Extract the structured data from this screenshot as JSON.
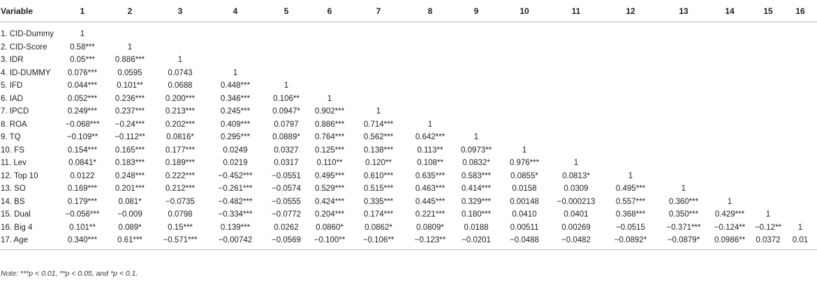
{
  "table": {
    "variable_header": "Variable",
    "columns": [
      "1",
      "2",
      "3",
      "4",
      "5",
      "6",
      "7",
      "8",
      "9",
      "10",
      "11",
      "12",
      "13",
      "14",
      "15",
      "16"
    ],
    "rows": [
      {
        "label": "1. CID-Dummy",
        "cells": [
          "1",
          "",
          "",
          "",
          "",
          "",
          "",
          "",
          "",
          "",
          "",
          "",
          "",
          "",
          "",
          ""
        ]
      },
      {
        "label": "2. CID-Score",
        "cells": [
          "0.58***",
          "1",
          "",
          "",
          "",
          "",
          "",
          "",
          "",
          "",
          "",
          "",
          "",
          "",
          "",
          ""
        ]
      },
      {
        "label": "3. IDR",
        "cells": [
          "0.05***",
          "0.886***",
          "1",
          "",
          "",
          "",
          "",
          "",
          "",
          "",
          "",
          "",
          "",
          "",
          "",
          ""
        ]
      },
      {
        "label": "4. ID-DUMMY",
        "cells": [
          "0.076***",
          "0.0595",
          "0.0743",
          "1",
          "",
          "",
          "",
          "",
          "",
          "",
          "",
          "",
          "",
          "",
          "",
          ""
        ]
      },
      {
        "label": "5. IFD",
        "cells": [
          "0.044***",
          "0.101**",
          "0.0688",
          "0.448***",
          "1",
          "",
          "",
          "",
          "",
          "",
          "",
          "",
          "",
          "",
          "",
          ""
        ]
      },
      {
        "label": "6. IAD",
        "cells": [
          "0.052***",
          "0.236***",
          "0.200***",
          "0.346***",
          "0.106**",
          "1",
          "",
          "",
          "",
          "",
          "",
          "",
          "",
          "",
          "",
          ""
        ]
      },
      {
        "label": "7. IPCD",
        "cells": [
          "0.249***",
          "0.237***",
          "0.213***",
          "0.245***",
          "0.0947*",
          "0.902***",
          "1",
          "",
          "",
          "",
          "",
          "",
          "",
          "",
          "",
          ""
        ]
      },
      {
        "label": "8. ROA",
        "cells": [
          "−0.068***",
          "−0.24***",
          "0.202***",
          "0.409***",
          "0.0797",
          "0.886***",
          "0.714***",
          "1",
          "",
          "",
          "",
          "",
          "",
          "",
          "",
          ""
        ]
      },
      {
        "label": "9. TQ",
        "cells": [
          "−0.109**",
          "−0.112**",
          "0.0816*",
          "0.295***",
          "0.0889*",
          "0.764***",
          "0.562***",
          "0.642***",
          "1",
          "",
          "",
          "",
          "",
          "",
          "",
          ""
        ]
      },
      {
        "label": "10. FS",
        "cells": [
          "0.154***",
          "0.165***",
          "0.177***",
          "0.0249",
          "0.0327",
          "0.125***",
          "0.138***",
          "0.113**",
          "0.0973**",
          "1",
          "",
          "",
          "",
          "",
          "",
          ""
        ]
      },
      {
        "label": "11. Lev",
        "cells": [
          "0.0841*",
          "0.183***",
          "0.189***",
          "0.0219",
          "0.0317",
          "0.110**",
          "0.120**",
          "0.108**",
          "0.0832*",
          "0.976***",
          "1",
          "",
          "",
          "",
          "",
          ""
        ]
      },
      {
        "label": "12. Top 10",
        "cells": [
          "0.0122",
          "0.248***",
          "0.222***",
          "−0.452***",
          "−0.0551",
          "0.495***",
          "0.610***",
          "0.635***",
          "0.583***",
          "0.0855*",
          "0.0813*",
          "1",
          "",
          "",
          "",
          ""
        ]
      },
      {
        "label": "13. SO",
        "cells": [
          "0.169***",
          "0.201***",
          "0.212***",
          "−0.261***",
          "−0.0574",
          "0.529***",
          "0.515***",
          "0.463***",
          "0.414***",
          "0.0158",
          "0.0309",
          "0.495***",
          "1",
          "",
          "",
          ""
        ]
      },
      {
        "label": "14. BS",
        "cells": [
          "0.179***",
          "0.081*",
          "−0.0735",
          "−0.482***",
          "−0.0555",
          "0.424***",
          "0.335***",
          "0.445***",
          "0.329***",
          "0.00148",
          "−0.000213",
          "0.557***",
          "0.360***",
          "1",
          "",
          ""
        ]
      },
      {
        "label": "15. Dual",
        "cells": [
          "−0.056***",
          "−0.009",
          "0.0798",
          "−0.334***",
          "−0.0772",
          "0.204***",
          "0.174***",
          "0.221***",
          "0.180***",
          "0.0410",
          "0.0401",
          "0.368***",
          "0.350***",
          "0.429***",
          "1",
          ""
        ]
      },
      {
        "label": "16. Big 4",
        "cells": [
          "0.101**",
          "0.089*",
          "0.15***",
          "0.139***",
          "0.0262",
          "0.0860*",
          "0.0862*",
          "0.0809*",
          "0.0188",
          "0.00511",
          "0.00269",
          "−0.0515",
          "−0.371***",
          "−0.124**",
          "−0.12**",
          "1"
        ]
      },
      {
        "label": "17. Age",
        "cells": [
          "0.340***",
          "0.61***",
          "−0.571***",
          "−0.00742",
          "−0.0569",
          "−0.100**",
          "−0.106**",
          "−0.123**",
          "−0.0201",
          "−0.0488",
          "−0.0482",
          "−0.0892*",
          "−0.0879*",
          "0.0986**",
          "0.0372",
          "0.01"
        ]
      }
    ]
  },
  "note": "Note: ***p < 0.01, **p < 0.05, and *p < 0.1."
}
